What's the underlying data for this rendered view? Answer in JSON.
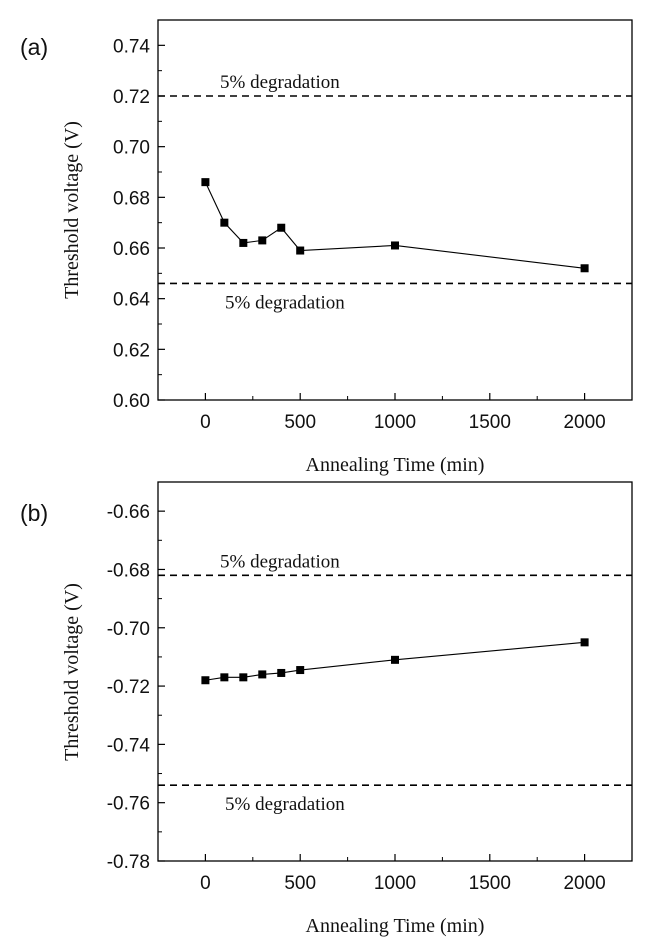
{
  "chart_data": [
    {
      "panel": "(a)",
      "type": "line",
      "xlabel": "Annealing Time (min)",
      "ylabel": "Threshold voltage (V)",
      "xlim": [
        -250,
        2250
      ],
      "ylim": [
        0.6,
        0.75
      ],
      "xticks": [
        0,
        500,
        1000,
        1500,
        2000
      ],
      "xtick_labels": [
        "0",
        "500",
        "1000",
        "1500",
        "2000"
      ],
      "yticks": [
        0.6,
        0.62,
        0.64,
        0.66,
        0.68,
        0.7,
        0.72,
        0.74
      ],
      "ytick_labels": [
        "0.60",
        "0.62",
        "0.64",
        "0.66",
        "0.68",
        "0.70",
        "0.72",
        "0.74"
      ],
      "series": [
        {
          "name": "Threshold voltage",
          "x": [
            0,
            100,
            200,
            300,
            400,
            500,
            1000,
            2000
          ],
          "y": [
            0.686,
            0.67,
            0.662,
            0.663,
            0.668,
            0.659,
            0.661,
            0.652
          ]
        }
      ],
      "reference_lines": [
        {
          "y": 0.72,
          "label": "5% degradation",
          "label_position": "above"
        },
        {
          "y": 0.646,
          "label": "5% degradation",
          "label_position": "below"
        }
      ]
    },
    {
      "panel": "(b)",
      "type": "line",
      "xlabel": "Annealing Time (min)",
      "ylabel": "Threshold voltage (V)",
      "xlim": [
        -250,
        2250
      ],
      "ylim": [
        -0.78,
        -0.65
      ],
      "xticks": [
        0,
        500,
        1000,
        1500,
        2000
      ],
      "xtick_labels": [
        "0",
        "500",
        "1000",
        "1500",
        "2000"
      ],
      "yticks": [
        -0.78,
        -0.76,
        -0.74,
        -0.72,
        -0.7,
        -0.68,
        -0.66
      ],
      "ytick_labels": [
        "-0.78",
        "-0.76",
        "-0.74",
        "-0.72",
        "-0.70",
        "-0.68",
        "-0.66"
      ],
      "series": [
        {
          "name": "Threshold voltage",
          "x": [
            0,
            100,
            200,
            300,
            400,
            500,
            1000,
            2000
          ],
          "y": [
            -0.718,
            -0.717,
            -0.717,
            -0.716,
            -0.7155,
            -0.7145,
            -0.711,
            -0.705
          ]
        }
      ],
      "reference_lines": [
        {
          "y": -0.682,
          "label": "5% degradation",
          "label_position": "above"
        },
        {
          "y": -0.754,
          "label": "5% degradation",
          "label_position": "below"
        }
      ]
    }
  ]
}
